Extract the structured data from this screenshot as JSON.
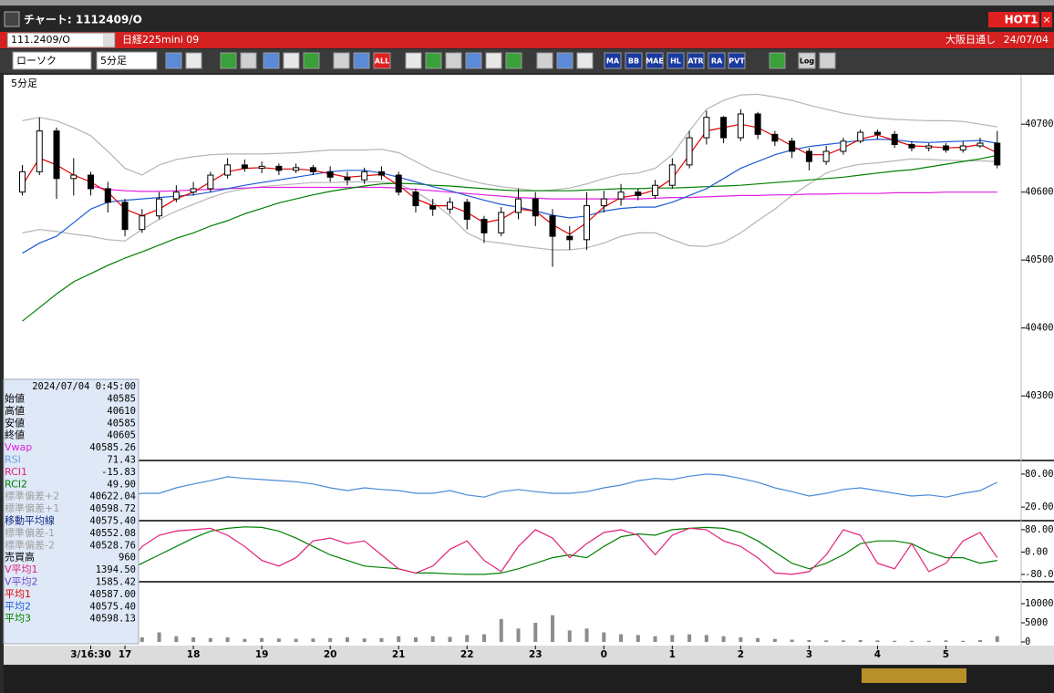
{
  "window": {
    "title": "チャート: 1112409/O",
    "hot_button": "HOT1"
  },
  "symbol_bar": {
    "code": "111.2409/O",
    "name": "日経225mini 09",
    "session": "大阪日通し",
    "date": "24/07/04"
  },
  "toolbar": {
    "chart_type": "ローソク",
    "interval": "5分足",
    "buttons": [
      "ALL",
      "MA",
      "BB",
      "MAE",
      "HL",
      "ATR",
      "RA",
      "PVT",
      "Log"
    ]
  },
  "pane_label": "5分足",
  "info_panel": {
    "timestamp": "2024/07/04 0:45:00",
    "rows": [
      {
        "label": "始値",
        "value": "40585",
        "color": "#000000"
      },
      {
        "label": "高値",
        "value": "40610",
        "color": "#000000"
      },
      {
        "label": "安値",
        "value": "40585",
        "color": "#000000"
      },
      {
        "label": "終値",
        "value": "40605",
        "color": "#000000"
      },
      {
        "label": "Vwap",
        "value": "40585.26",
        "color": "#e020e0"
      },
      {
        "label": "RSI",
        "value": "71.43",
        "color": "#6aa0e0"
      },
      {
        "label": "RCI1",
        "value": "-15.83",
        "color": "#e0207a"
      },
      {
        "label": "RCI2",
        "value": "49.90",
        "color": "#008000"
      },
      {
        "label": "標準偏差+2",
        "value": "40622.04",
        "color": "#a0a0a0"
      },
      {
        "label": "標準偏差+1",
        "value": "40598.72",
        "color": "#a0a0a0"
      },
      {
        "label": "移動平均線",
        "value": "40575.40",
        "color": "#102a80"
      },
      {
        "label": "標準偏差-1",
        "value": "40552.08",
        "color": "#a0a0a0"
      },
      {
        "label": "標準偏差-2",
        "value": "40528.76",
        "color": "#a0a0a0"
      },
      {
        "label": "売買高",
        "value": "960",
        "color": "#000000"
      },
      {
        "label": "V平均1",
        "value": "1394.50",
        "color": "#e0207a"
      },
      {
        "label": "V平均2",
        "value": "1585.42",
        "color": "#6a4ad0"
      },
      {
        "label": "平均1",
        "value": "40587.00",
        "color": "#e00000"
      },
      {
        "label": "平均2",
        "value": "40575.40",
        "color": "#1e5bd6"
      },
      {
        "label": "平均3",
        "value": "40598.13",
        "color": "#008000"
      }
    ]
  },
  "chart_data": [
    {
      "type": "candlestick",
      "x": [
        -1,
        -0.75,
        -0.5,
        -0.25,
        0,
        0.25,
        0.5,
        0.75,
        1,
        1.25,
        1.5,
        1.75,
        2,
        2.25,
        2.5,
        2.75,
        3,
        3.25,
        3.5,
        3.75,
        4,
        4.25,
        4.5,
        4.75,
        5,
        5.25,
        5.5,
        5.75,
        6,
        6.25,
        6.5,
        6.75,
        7,
        7.25,
        7.5,
        7.75,
        8,
        8.25,
        8.5,
        8.75,
        9,
        9.25,
        9.5,
        9.75,
        10,
        10.25,
        10.5,
        10.75,
        11,
        11.25,
        11.5,
        11.75,
        12,
        12.25,
        12.5,
        12.75,
        13,
        13.25
      ],
      "xlim": [
        -1.26,
        13.6
      ],
      "xticks": [
        {
          "value": 0,
          "label": "3/16:30"
        },
        {
          "value": 0.5,
          "label": "17"
        },
        {
          "value": 1.5,
          "label": "18"
        },
        {
          "value": 2.5,
          "label": "19"
        },
        {
          "value": 3.5,
          "label": "20"
        },
        {
          "value": 4.5,
          "label": "21"
        },
        {
          "value": 5.5,
          "label": "22"
        },
        {
          "value": 6.5,
          "label": "23"
        },
        {
          "value": 7.5,
          "label": "0"
        },
        {
          "value": 8.5,
          "label": "1"
        },
        {
          "value": 9.5,
          "label": "2"
        },
        {
          "value": 10.5,
          "label": "3"
        },
        {
          "value": 11.5,
          "label": "4"
        },
        {
          "value": 12.5,
          "label": "5"
        }
      ],
      "ylim": [
        40205,
        40770
      ],
      "yticks": [
        40300,
        40400,
        40500,
        40600,
        40700
      ],
      "open": [
        40600,
        40630,
        40690,
        40620,
        40625,
        40605,
        40585,
        40545,
        40565,
        40590,
        40600,
        40605,
        40625,
        40640,
        40635,
        40638,
        40632,
        40636,
        40630,
        40622,
        40618,
        40630,
        40625,
        40600,
        40580,
        40575,
        40585,
        40560,
        40540,
        40570,
        40590,
        40565,
        40535,
        40530,
        40580,
        40590,
        40600,
        40595,
        40610,
        40640,
        40680,
        40710,
        40680,
        40715,
        40685,
        40675,
        40660,
        40645,
        40660,
        40675,
        40688,
        40685,
        40670,
        40665,
        40668,
        40662,
        40668,
        40672
      ],
      "high": [
        40640,
        40710,
        40695,
        40650,
        40630,
        40615,
        40590,
        40575,
        40600,
        40610,
        40615,
        40630,
        40650,
        40648,
        40645,
        40642,
        40642,
        40640,
        40638,
        40630,
        40636,
        40638,
        40630,
        40605,
        40590,
        40592,
        40590,
        40565,
        40578,
        40605,
        40600,
        40575,
        40550,
        40600,
        40602,
        40612,
        40605,
        40618,
        40650,
        40690,
        40720,
        40712,
        40722,
        40718,
        40690,
        40680,
        40665,
        40668,
        40680,
        40692,
        40692,
        40690,
        40675,
        40672,
        40672,
        40675,
        40680,
        40690
      ],
      "low": [
        40595,
        40625,
        40590,
        40595,
        40595,
        40570,
        40535,
        40540,
        40560,
        40585,
        40595,
        40600,
        40620,
        40630,
        40628,
        40625,
        40628,
        40625,
        40615,
        40610,
        40612,
        40618,
        40595,
        40570,
        40565,
        40568,
        40545,
        40525,
        40535,
        40560,
        40550,
        40490,
        40515,
        40515,
        40570,
        40580,
        40588,
        40590,
        40605,
        40635,
        40670,
        40672,
        40675,
        40678,
        40668,
        40650,
        40632,
        40640,
        40655,
        40672,
        40678,
        40665,
        40660,
        40660,
        40658,
        40658,
        40665,
        40635
      ],
      "close": [
        40630,
        40690,
        40620,
        40625,
        40605,
        40585,
        40545,
        40565,
        40590,
        40600,
        40605,
        40625,
        40640,
        40635,
        40638,
        40632,
        40636,
        40630,
        40622,
        40618,
        40630,
        40625,
        40600,
        40580,
        40575,
        40585,
        40560,
        40540,
        40570,
        40590,
        40565,
        40535,
        40530,
        40580,
        40590,
        40600,
        40595,
        40610,
        40640,
        40680,
        40710,
        40680,
        40715,
        40685,
        40675,
        40660,
        40645,
        40660,
        40675,
        40688,
        40685,
        40670,
        40665,
        40668,
        40662,
        40668,
        40672,
        40640
      ],
      "series": [
        {
          "color": "#b4b4b4",
          "values": [
            40705,
            40710,
            40705,
            40695,
            40683,
            40660,
            40635,
            40625,
            40640,
            40648,
            40652,
            40655,
            40656,
            40656,
            40656,
            40657,
            40658,
            40660,
            40662,
            40662,
            40662,
            40663,
            40658,
            40645,
            40632,
            40625,
            40618,
            40612,
            40608,
            40605,
            40602,
            40603,
            40606,
            40612,
            40620,
            40626,
            40628,
            40635,
            40655,
            40690,
            40722,
            40735,
            40743,
            40744,
            40740,
            40735,
            40728,
            40722,
            40716,
            40712,
            40709,
            40707,
            40706,
            40705,
            40705,
            40704,
            40700,
            40696
          ]
        },
        {
          "color": "#b4b4b4",
          "values": [
            40540,
            40545,
            40542,
            40538,
            40535,
            40530,
            40528,
            40545,
            40560,
            40572,
            40582,
            40592,
            40600,
            40605,
            40608,
            40610,
            40612,
            40614,
            40614,
            40615,
            40615,
            40615,
            40612,
            40600,
            40585,
            40565,
            40540,
            40528,
            40525,
            40521,
            40518,
            40515,
            40515,
            40518,
            40525,
            40535,
            40540,
            40540,
            40530,
            40521,
            40520,
            40526,
            40540,
            40558,
            40575,
            40595,
            40612,
            40628,
            40636,
            40641,
            40643,
            40646,
            40649,
            40648,
            40647,
            40646,
            40646,
            40645
          ]
        },
        {
          "color": "#e020e0",
          "values": [
            null,
            null,
            null,
            null,
            40609,
            40604,
            40602,
            40601,
            40601,
            40602,
            40603,
            40604,
            40605,
            40606,
            40607,
            40607,
            40607,
            40607,
            40607,
            40607,
            40607,
            40607,
            40606,
            40604,
            40602,
            40600,
            40598,
            40596,
            40594,
            40592,
            40591,
            40590,
            40590,
            40590,
            40590,
            40590,
            40590,
            40591,
            40592,
            40592,
            40593,
            40594,
            40595,
            40595,
            40596,
            40596,
            40597,
            40597,
            40598,
            40598,
            40598,
            40599,
            40599,
            40599,
            40600,
            40600,
            40600,
            40600
          ]
        },
        {
          "color": "#008000",
          "values": [
            40410,
            40430,
            40450,
            40468,
            40480,
            40492,
            40503,
            40512,
            40522,
            40532,
            40540,
            40550,
            40558,
            40568,
            40576,
            40584,
            40590,
            40596,
            40601,
            40605,
            40609,
            40612,
            40613,
            40612,
            40610,
            40609,
            40607,
            40605,
            40603,
            40602,
            40602,
            40602,
            40602,
            40603,
            40604,
            40605,
            40605,
            40606,
            40606,
            40607,
            40608,
            40609,
            40610,
            40612,
            40614,
            40616,
            40618,
            40620,
            40622,
            40625,
            40628,
            40631,
            40633,
            40637,
            40641,
            40645,
            40649,
            40654
          ]
        },
        {
          "color": "#1e5bd6",
          "values": [
            40510,
            40525,
            40535,
            40555,
            40575,
            40585,
            40588,
            40590,
            40592,
            40594,
            40596,
            40600,
            40605,
            40610,
            40614,
            40618,
            40622,
            40626,
            40630,
            40632,
            40632,
            40628,
            40622,
            40615,
            40608,
            40602,
            40595,
            40588,
            40582,
            40578,
            40572,
            40566,
            40562,
            40565,
            40572,
            40576,
            40578,
            40578,
            40585,
            40595,
            40605,
            40620,
            40635,
            40645,
            40655,
            40662,
            40667,
            40670,
            40673,
            40676,
            40678,
            40677,
            40674,
            40673,
            40674,
            40675,
            40676,
            40672
          ]
        },
        {
          "color": "#e00000",
          "values": [
            40610,
            40650,
            40640,
            40625,
            40615,
            40600,
            40575,
            40565,
            40575,
            40590,
            40600,
            40615,
            40630,
            40635,
            40636,
            40634,
            40634,
            40632,
            40627,
            40622,
            40624,
            40626,
            40610,
            40590,
            40580,
            40580,
            40570,
            40555,
            40560,
            40575,
            40572,
            40552,
            40538,
            40555,
            40578,
            40592,
            40596,
            40603,
            40620,
            40655,
            40690,
            40695,
            40700,
            40695,
            40682,
            40668,
            40655,
            40655,
            40665,
            40678,
            40684,
            40676,
            40668,
            40667,
            40665,
            40666,
            40670,
            40658
          ]
        }
      ]
    },
    {
      "type": "line",
      "ylim": [
        -3,
        103
      ],
      "yticks": [
        {
          "value": 80,
          "label": "80.00"
        },
        {
          "value": 20,
          "label": "20.00"
        }
      ],
      "series": [
        {
          "color": "#4a8ad8",
          "values": [
            50,
            60,
            55,
            50,
            48,
            40,
            38,
            45,
            45,
            55,
            62,
            68,
            75,
            72,
            70,
            68,
            66,
            62,
            55,
            50,
            55,
            52,
            50,
            45,
            45,
            50,
            42,
            38,
            48,
            52,
            48,
            45,
            45,
            48,
            55,
            60,
            68,
            72,
            70,
            76,
            80,
            78,
            72,
            65,
            55,
            48,
            40,
            45,
            52,
            55,
            50,
            45,
            40,
            42,
            38,
            45,
            50,
            65
          ]
        }
      ]
    },
    {
      "type": "line",
      "ylim": [
        -103,
        109
      ],
      "yticks": [
        {
          "value": 80,
          "label": "80.00"
        },
        {
          "value": 0,
          "label": "0.00"
        },
        {
          "value": -80,
          "label": "-80.00"
        }
      ],
      "series": [
        {
          "color": "#008000",
          "values": [
            -40,
            -10,
            20,
            -30,
            -40,
            -60,
            -70,
            -40,
            -10,
            20,
            50,
            75,
            85,
            90,
            88,
            75,
            50,
            20,
            -10,
            -30,
            -50,
            -55,
            -60,
            -75,
            -75,
            -78,
            -80,
            -80,
            -75,
            -60,
            -40,
            -20,
            -10,
            -20,
            20,
            55,
            65,
            60,
            80,
            85,
            88,
            85,
            70,
            40,
            0,
            -40,
            -60,
            -40,
            -10,
            30,
            40,
            40,
            30,
            0,
            -20,
            -20,
            -40,
            -30
          ]
        },
        {
          "color": "#e0207a",
          "values": [
            -20,
            40,
            60,
            70,
            60,
            -40,
            -60,
            20,
            60,
            75,
            80,
            85,
            60,
            20,
            -30,
            -50,
            -20,
            40,
            50,
            30,
            40,
            -10,
            -60,
            -75,
            -50,
            10,
            40,
            -30,
            -70,
            20,
            80,
            50,
            -20,
            30,
            70,
            80,
            60,
            -10,
            60,
            85,
            80,
            40,
            20,
            -20,
            -75,
            -80,
            -70,
            -10,
            80,
            60,
            -40,
            -60,
            30,
            -70,
            -40,
            40,
            70,
            -20
          ]
        }
      ]
    },
    {
      "type": "bar",
      "color": "#8c8c8c",
      "ylim": [
        0,
        15500
      ],
      "yticks": [
        10000,
        5000,
        0
      ],
      "values": [
        3500,
        3600,
        3400,
        3500,
        3000,
        2000,
        1500,
        1200,
        2500,
        1500,
        1200,
        1000,
        1200,
        800,
        1000,
        900,
        800,
        900,
        1000,
        1200,
        900,
        1000,
        1500,
        1200,
        1500,
        1300,
        1800,
        2000,
        6000,
        3500,
        5000,
        7000,
        3000,
        3500,
        2500,
        2000,
        1800,
        1500,
        1800,
        2000,
        1800,
        1500,
        1200,
        1000,
        800,
        600,
        500,
        400,
        400,
        500,
        400,
        300,
        300,
        300,
        400,
        300,
        500,
        1500
      ]
    }
  ]
}
